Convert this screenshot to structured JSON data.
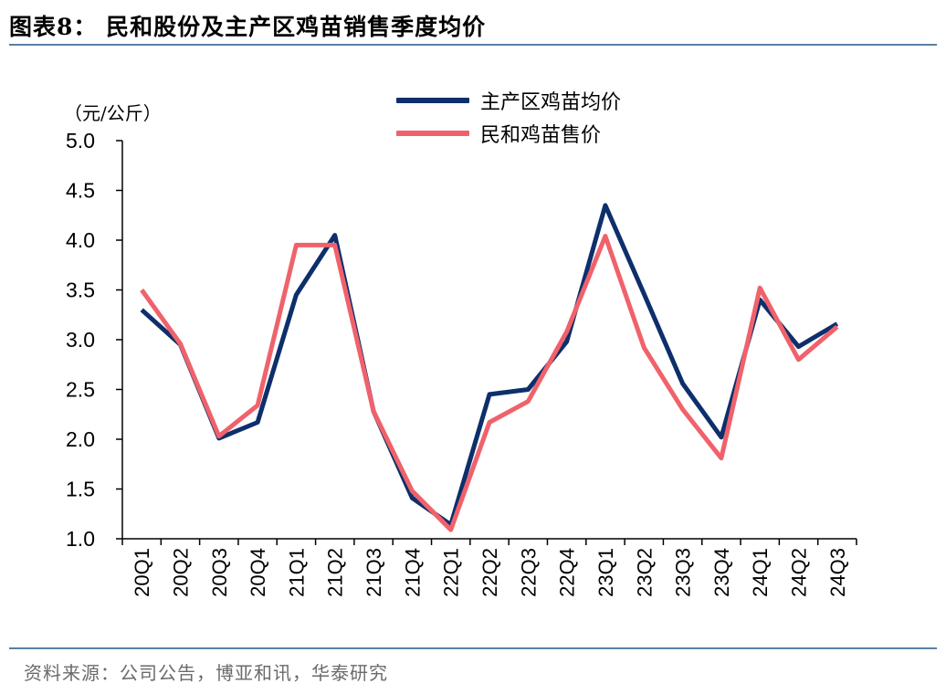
{
  "header": {
    "title": "图表8：  民和股份及主产区鸡苗销售季度均价"
  },
  "footer": {
    "source": "资料来源：公司公告，博亚和讯，华泰研究"
  },
  "colors": {
    "series1": "#0d2f6b",
    "series2": "#f0626b",
    "axis": "#000000",
    "rule": "#5a7fa6"
  },
  "chart_data": {
    "type": "line",
    "unit_label": "（元/公斤）",
    "categories": [
      "20Q1",
      "20Q2",
      "20Q3",
      "20Q4",
      "21Q1",
      "21Q2",
      "21Q3",
      "21Q4",
      "22Q1",
      "22Q2",
      "22Q3",
      "22Q4",
      "23Q1",
      "23Q2",
      "23Q3",
      "23Q4",
      "24Q1",
      "24Q2",
      "24Q3"
    ],
    "y_ticks": [
      "1.0",
      "1.5",
      "2.0",
      "2.5",
      "3.0",
      "3.5",
      "4.0",
      "4.5",
      "5.0"
    ],
    "ylim": [
      1.0,
      5.0
    ],
    "grid": false,
    "legend_position": "top-right",
    "series": [
      {
        "name": "主产区鸡苗均价",
        "values": [
          3.3,
          2.95,
          2.01,
          2.17,
          3.45,
          4.05,
          2.28,
          1.41,
          1.14,
          2.45,
          2.5,
          2.98,
          4.35,
          3.46,
          2.56,
          2.02,
          3.4,
          2.93,
          3.16
        ]
      },
      {
        "name": "民和鸡苗售价",
        "values": [
          3.5,
          2.96,
          2.03,
          2.34,
          3.95,
          3.95,
          2.28,
          1.48,
          1.09,
          2.17,
          2.38,
          3.08,
          4.04,
          2.92,
          2.3,
          1.81,
          3.52,
          2.8,
          3.13
        ]
      }
    ]
  }
}
